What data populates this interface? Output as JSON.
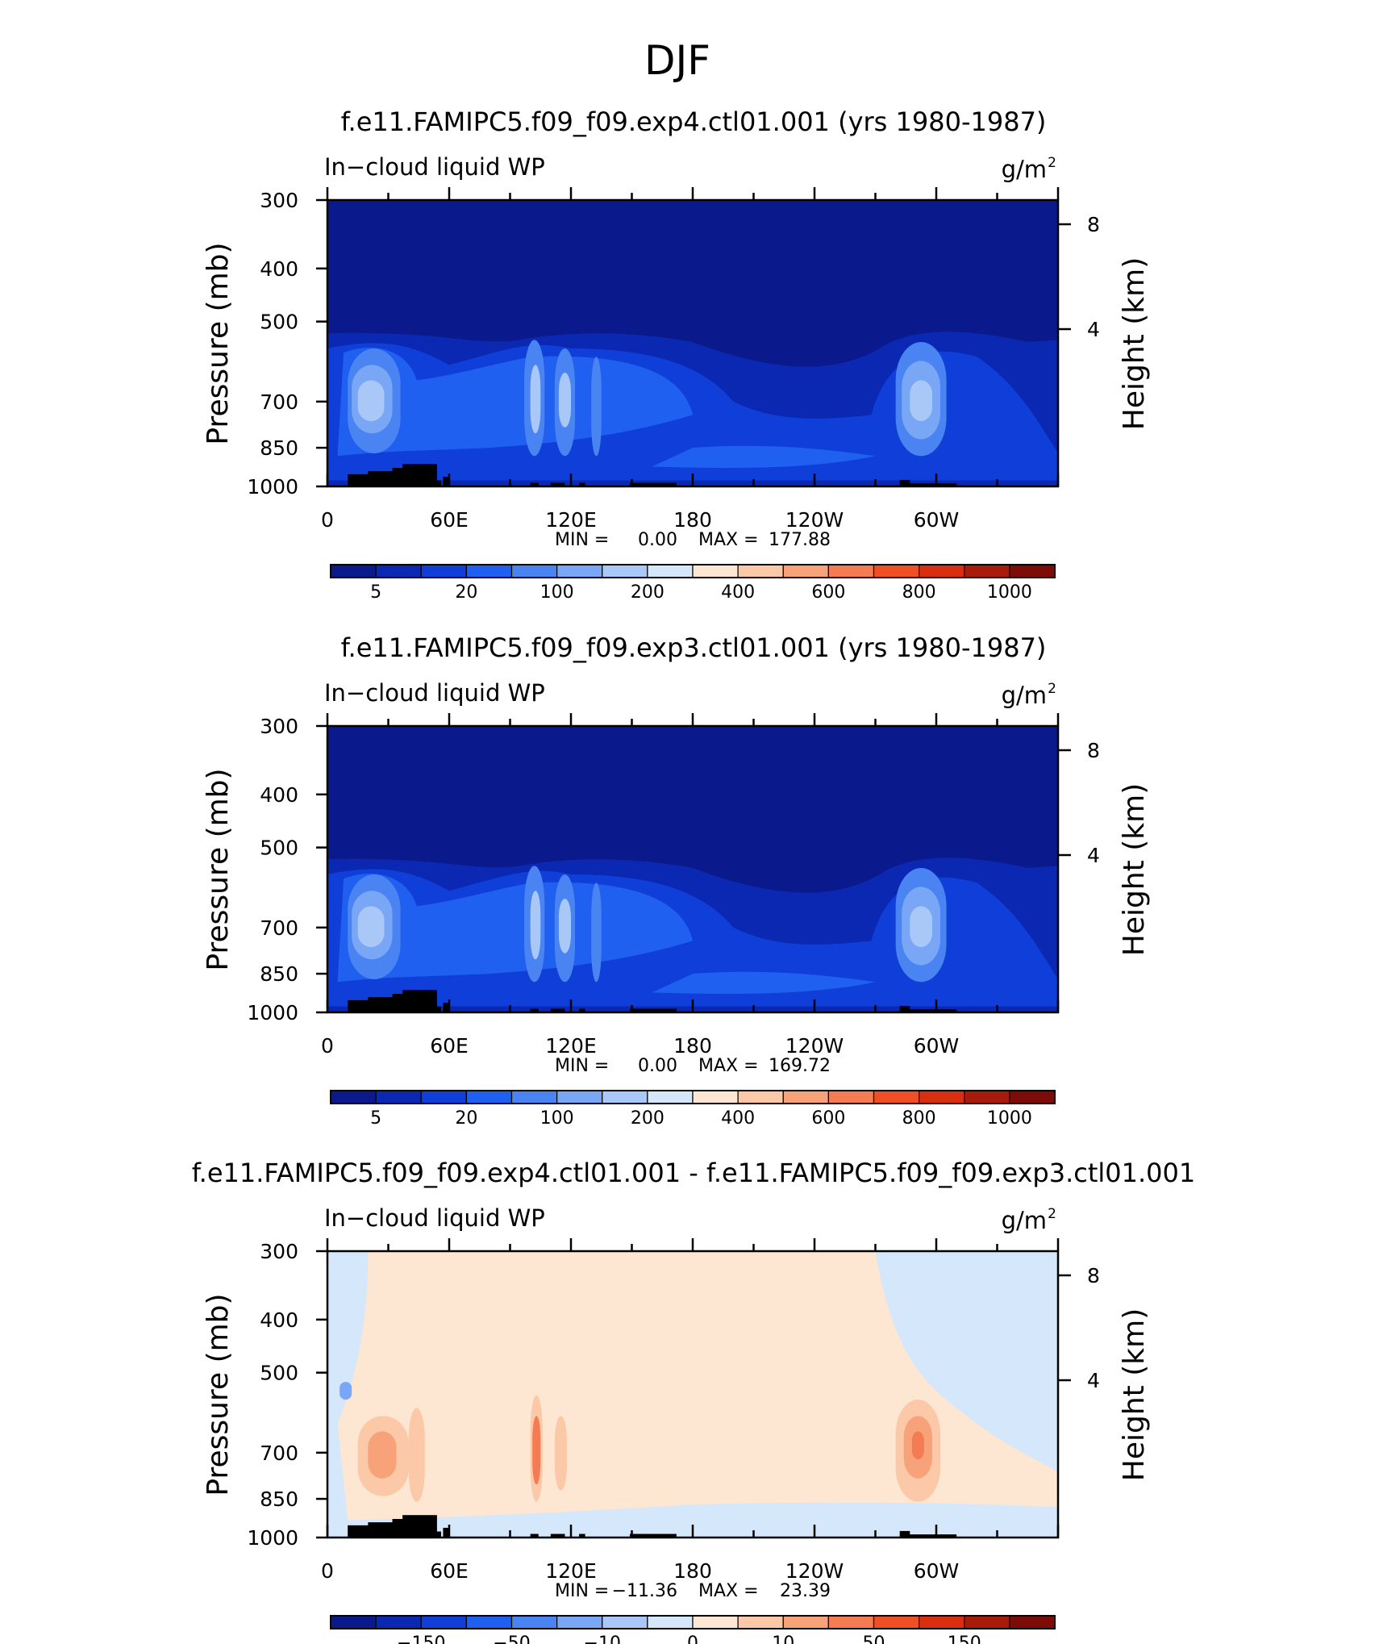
{
  "figure_title": "DJF",
  "axes_text": {
    "left_label": "Pressure (mb)",
    "right_label": "Height (km)",
    "variable": "In−cloud liquid WP",
    "units_base": "g/m",
    "units_sup": "2"
  },
  "chart_data": [
    {
      "type": "heatmap",
      "title": "f.e11.FAMIPC5.f09_f09.exp4.ctl01.001 (yrs 1980-1987)",
      "subtitle": "In−cloud liquid WP",
      "units": "g/m2",
      "x_ticks": [
        "0",
        "60E",
        "120E",
        "180",
        "120W",
        "60W"
      ],
      "y_ticks": [
        "300",
        "400",
        "500",
        "700",
        "850",
        "1000"
      ],
      "y_right_ticks": [
        "8",
        "4"
      ],
      "stats": {
        "min_label": "MIN =",
        "min": "0.00",
        "max_label": "MAX =",
        "max": "177.88"
      },
      "colorbar_labels": [
        "5",
        "20",
        "100",
        "200",
        "400",
        "600",
        "800",
        "1000"
      ],
      "colorbar_colors": [
        "#0a1a8c",
        "#0b28b3",
        "#0f3fd8",
        "#2060f0",
        "#4a84f3",
        "#7aa7f5",
        "#a9c8f8",
        "#d4e7fb",
        "#fde6d2",
        "#fbc8a8",
        "#f8a27a",
        "#f57c52",
        "#f04f25",
        "#d92f10",
        "#a81a0a",
        "#7d0b08"
      ],
      "field": "full"
    },
    {
      "type": "heatmap",
      "title": "f.e11.FAMIPC5.f09_f09.exp3.ctl01.001 (yrs 1980-1987)",
      "subtitle": "In−cloud liquid WP",
      "units": "g/m2",
      "x_ticks": [
        "0",
        "60E",
        "120E",
        "180",
        "120W",
        "60W"
      ],
      "y_ticks": [
        "300",
        "400",
        "500",
        "700",
        "850",
        "1000"
      ],
      "y_right_ticks": [
        "8",
        "4"
      ],
      "stats": {
        "min_label": "MIN =",
        "min": "0.00",
        "max_label": "MAX =",
        "max": "169.72"
      },
      "colorbar_labels": [
        "5",
        "20",
        "100",
        "200",
        "400",
        "600",
        "800",
        "1000"
      ],
      "colorbar_colors": [
        "#0a1a8c",
        "#0b28b3",
        "#0f3fd8",
        "#2060f0",
        "#4a84f3",
        "#7aa7f5",
        "#a9c8f8",
        "#d4e7fb",
        "#fde6d2",
        "#fbc8a8",
        "#f8a27a",
        "#f57c52",
        "#f04f25",
        "#d92f10",
        "#a81a0a",
        "#7d0b08"
      ],
      "field": "full"
    },
    {
      "type": "heatmap",
      "title": "f.e11.FAMIPC5.f09_f09.exp4.ctl01.001 - f.e11.FAMIPC5.f09_f09.exp3.ctl01.001",
      "subtitle": "In−cloud liquid WP",
      "units": "g/m2",
      "x_ticks": [
        "0",
        "60E",
        "120E",
        "180",
        "120W",
        "60W"
      ],
      "y_ticks": [
        "300",
        "400",
        "500",
        "700",
        "850",
        "1000"
      ],
      "y_right_ticks": [
        "8",
        "4"
      ],
      "stats": {
        "min_label": "MIN =",
        "min": "−11.36",
        "max_label": "MAX =",
        "max": "23.39"
      },
      "colorbar_labels": [
        "−150",
        "−50",
        "−10",
        "0",
        "10",
        "50",
        "150"
      ],
      "colorbar_colors": [
        "#0a1a8c",
        "#0b28b3",
        "#0f3fd8",
        "#2060f0",
        "#4a84f3",
        "#7aa7f5",
        "#a9c8f8",
        "#d4e7fb",
        "#fde6d2",
        "#fbc8a8",
        "#f8a27a",
        "#f57c52",
        "#f04f25",
        "#d92f10",
        "#a81a0a",
        "#7d0b08"
      ],
      "field": "diff"
    }
  ]
}
